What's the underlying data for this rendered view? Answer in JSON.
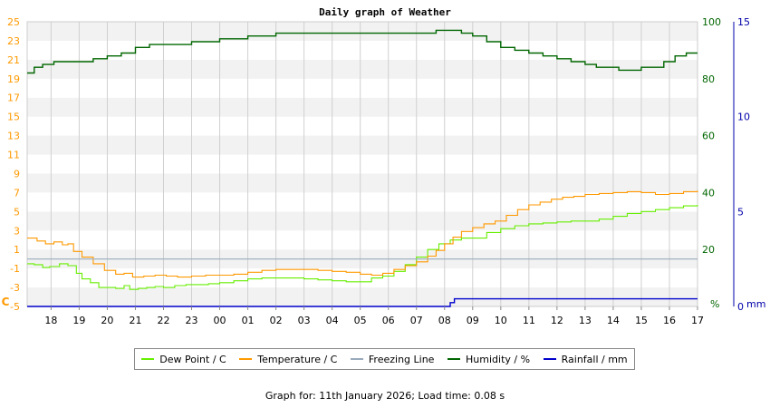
{
  "chart_data": {
    "type": "line",
    "title": "Daily graph of Weather",
    "left_axis": {
      "unit": "C",
      "range": [
        -5,
        25
      ],
      "ticks": [
        -5,
        -3,
        -1,
        1,
        3,
        5,
        7,
        9,
        11,
        13,
        15,
        17,
        19,
        21,
        23,
        25
      ],
      "tick_color": "#ff9900"
    },
    "right_axis_humidity": {
      "unit": "%",
      "range": [
        0,
        100
      ],
      "ticks": [
        20,
        40,
        60,
        80,
        100
      ],
      "tick_color": "#006600"
    },
    "right_axis_rain": {
      "unit": "mm",
      "range": [
        0,
        15
      ],
      "ticks": [
        0,
        5,
        10,
        15
      ],
      "tick_color": "#0000aa"
    },
    "x_ticks": [
      "18",
      "19",
      "20",
      "21",
      "22",
      "23",
      "00",
      "01",
      "02",
      "03",
      "04",
      "05",
      "06",
      "07",
      "08",
      "09",
      "10",
      "11",
      "12",
      "13",
      "14",
      "15",
      "16",
      "17"
    ],
    "x_range": [
      -0.85,
      23.0
    ],
    "grid": true,
    "legend_placement": "bottom",
    "series": [
      {
        "name": "Dew Point / C",
        "axis": "left",
        "color": "#66ee00",
        "x": [
          -0.85,
          -0.6,
          -0.3,
          -0.05,
          0.3,
          0.6,
          0.9,
          1.1,
          1.4,
          1.7,
          2.0,
          2.3,
          2.6,
          2.8,
          3.1,
          3.4,
          3.7,
          4.0,
          4.4,
          4.8,
          5.2,
          5.6,
          6.0,
          6.5,
          7.0,
          7.5,
          8.0,
          8.5,
          9.0,
          9.5,
          10.0,
          10.5,
          11.0,
          11.4,
          11.8,
          12.2,
          12.6,
          13.0,
          13.4,
          13.8,
          14.2,
          14.6,
          15.0,
          15.5,
          16.0,
          16.5,
          17.0,
          17.5,
          18.0,
          18.5,
          19.0,
          19.5,
          20.0,
          20.5,
          21.0,
          21.5,
          22.0,
          22.5,
          23.0
        ],
        "y": [
          -0.5,
          -0.6,
          -0.9,
          -0.8,
          -0.5,
          -0.7,
          -1.5,
          -2.1,
          -2.5,
          -3.0,
          -3.0,
          -3.1,
          -2.8,
          -3.2,
          -3.1,
          -3.0,
          -2.9,
          -3.0,
          -2.8,
          -2.7,
          -2.7,
          -2.6,
          -2.5,
          -2.3,
          -2.1,
          -2.0,
          -2.0,
          -2.0,
          -2.1,
          -2.2,
          -2.3,
          -2.4,
          -2.4,
          -2.0,
          -1.8,
          -1.3,
          -0.6,
          0.2,
          1.0,
          1.6,
          2.0,
          2.2,
          2.2,
          2.8,
          3.2,
          3.5,
          3.7,
          3.8,
          3.9,
          4.0,
          4.0,
          4.2,
          4.5,
          4.8,
          5.0,
          5.2,
          5.4,
          5.6,
          5.7
        ]
      },
      {
        "name": "Temperature / C",
        "axis": "left",
        "color": "#ff9900",
        "x": [
          -0.85,
          -0.5,
          -0.2,
          0.1,
          0.4,
          0.6,
          0.8,
          1.1,
          1.5,
          1.9,
          2.3,
          2.6,
          2.9,
          3.3,
          3.7,
          4.1,
          4.5,
          5.0,
          5.5,
          6.0,
          6.5,
          7.0,
          7.5,
          8.0,
          8.5,
          9.0,
          9.5,
          10.0,
          10.5,
          11.0,
          11.4,
          11.8,
          12.2,
          12.6,
          13.0,
          13.4,
          13.7,
          14.0,
          14.3,
          14.6,
          15.0,
          15.4,
          15.8,
          16.2,
          16.6,
          17.0,
          17.4,
          17.8,
          18.2,
          18.6,
          19.0,
          19.5,
          20.0,
          20.5,
          21.0,
          21.5,
          22.0,
          22.5,
          23.0
        ],
        "y": [
          2.2,
          1.9,
          1.6,
          1.8,
          1.5,
          1.6,
          0.8,
          0.2,
          -0.5,
          -1.2,
          -1.6,
          -1.5,
          -1.9,
          -1.8,
          -1.7,
          -1.8,
          -1.9,
          -1.8,
          -1.7,
          -1.7,
          -1.6,
          -1.4,
          -1.2,
          -1.1,
          -1.1,
          -1.1,
          -1.2,
          -1.3,
          -1.4,
          -1.6,
          -1.7,
          -1.5,
          -1.1,
          -0.7,
          -0.3,
          0.3,
          0.9,
          1.6,
          2.3,
          2.9,
          3.3,
          3.7,
          4.0,
          4.6,
          5.2,
          5.7,
          6.0,
          6.3,
          6.5,
          6.6,
          6.8,
          6.9,
          7.0,
          7.1,
          7.0,
          6.8,
          6.9,
          7.1,
          7.2
        ]
      },
      {
        "name": "Freezing Line",
        "axis": "left",
        "color": "#99aabb",
        "x": [
          -0.85,
          23.0
        ],
        "y": [
          0,
          0
        ]
      },
      {
        "name": "Humidity / %",
        "axis": "humidity",
        "color": "#006600",
        "x": [
          -0.85,
          -0.6,
          -0.3,
          0.1,
          0.5,
          1.0,
          1.5,
          2.0,
          2.5,
          3.0,
          3.5,
          4.0,
          5.0,
          6.0,
          7.0,
          8.0,
          9.0,
          10.0,
          11.0,
          11.8,
          12.2,
          12.6,
          13.0,
          13.4,
          13.7,
          14.0,
          14.3,
          14.6,
          15.0,
          15.5,
          16.0,
          16.5,
          17.0,
          17.5,
          18.0,
          18.5,
          19.0,
          19.4,
          19.8,
          20.2,
          20.6,
          21.0,
          21.4,
          21.8,
          22.2,
          22.6,
          23.0
        ],
        "y": [
          82,
          84,
          85,
          86,
          86,
          86,
          87,
          88,
          89,
          91,
          92,
          92,
          93,
          94,
          95,
          96,
          96,
          96,
          96,
          96,
          96,
          96,
          96,
          96,
          97,
          97,
          97,
          96,
          95,
          93,
          91,
          90,
          89,
          88,
          87,
          86,
          85,
          84,
          84,
          83,
          83,
          84,
          84,
          86,
          88,
          89,
          89
        ]
      },
      {
        "name": "Rainfall / mm",
        "axis": "rain",
        "color": "#0000cc",
        "x": [
          -0.85,
          14.2,
          14.2,
          14.35,
          14.35,
          23.0
        ],
        "y": [
          0,
          0,
          0.2,
          0.2,
          0.4,
          0.4
        ]
      }
    ]
  },
  "footer": {
    "text": "Graph for: 11th January 2026; Load time: 0.08 s"
  }
}
